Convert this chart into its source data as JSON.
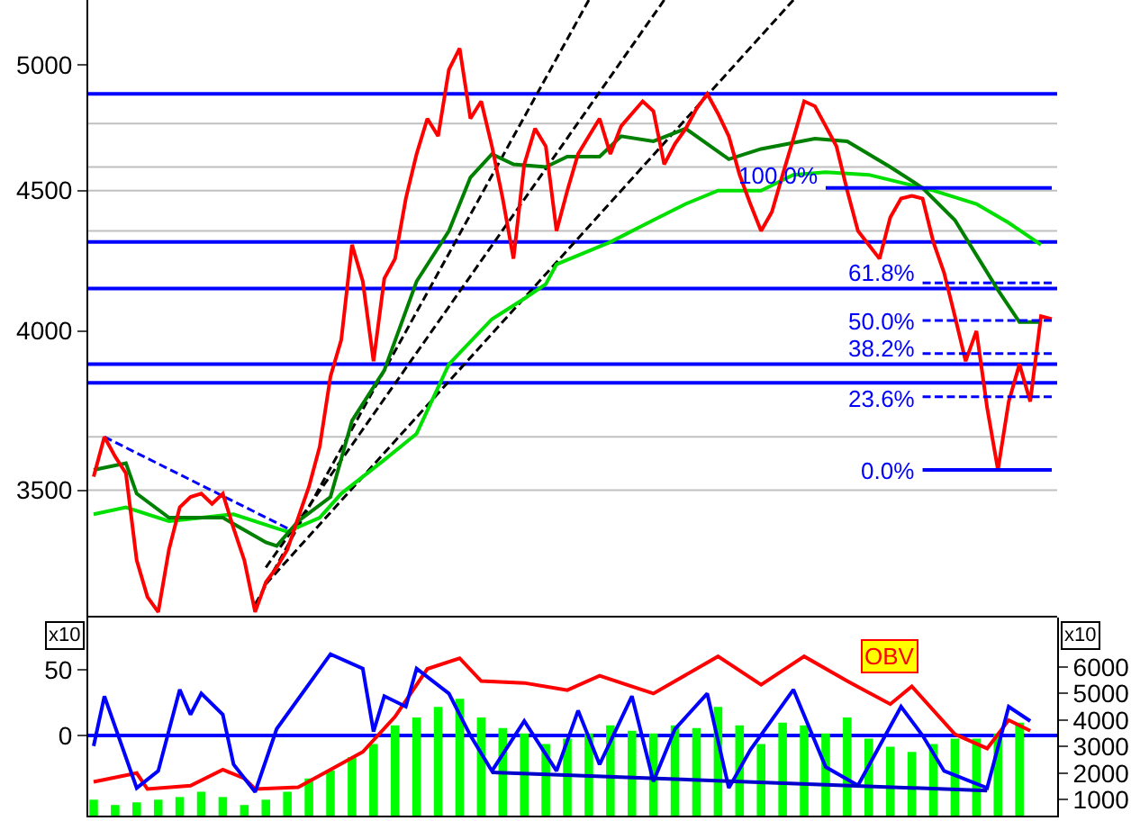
{
  "chart_data": [
    {
      "type": "line",
      "log": true,
      "categories": [
        null,
        null,
        null,
        null,
        null,
        null,
        null,
        null,
        null,
        null,
        null,
        null,
        null,
        null,
        null,
        null,
        null,
        null,
        null,
        null,
        null,
        null,
        null,
        null,
        null,
        null,
        null,
        null,
        null,
        null,
        null,
        null,
        null,
        null,
        null,
        null,
        null,
        null,
        null,
        null,
        null,
        null,
        null,
        null,
        null,
        null,
        null,
        null,
        null,
        null,
        null,
        null,
        null,
        null,
        null,
        null,
        null,
        null,
        null,
        null,
        null,
        null,
        null,
        null,
        null,
        null,
        null,
        null,
        null,
        null,
        null,
        null,
        null,
        null,
        null,
        null,
        null,
        null,
        null,
        null,
        null,
        null,
        null,
        null,
        null,
        null,
        null,
        null,
        null,
        null
      ],
      "ylim": [
        3150,
        5280
      ],
      "yticks": [
        3500,
        4000,
        4500,
        5000
      ],
      "ref_lines": [
        {
          "axis": "y",
          "value": 4760,
          "color": "#c0c0c0"
        },
        {
          "axis": "y",
          "value": 4590,
          "color": "#c0c0c0"
        },
        {
          "axis": "y",
          "value": 4500,
          "color": "#c0c0c0"
        },
        {
          "axis": "y",
          "value": 4350,
          "color": "#c0c0c0"
        },
        {
          "axis": "y",
          "value": 3660,
          "color": "#c0c0c0"
        },
        {
          "axis": "y",
          "value": 3500,
          "color": "#c0c0c0"
        },
        {
          "axis": "y",
          "value": 4880,
          "color": "#0000ff"
        },
        {
          "axis": "y",
          "value": 4310,
          "color": "#0000ff"
        },
        {
          "axis": "y",
          "value": 4145,
          "color": "#0000ff"
        },
        {
          "axis": "y",
          "value": 3890,
          "color": "#0000ff"
        },
        {
          "axis": "y",
          "value": 3830,
          "color": "#0000ff"
        }
      ],
      "series": [
        {
          "color": "#000000",
          "line_style": "dashed",
          "values": [
            null,
            null,
            null,
            null,
            null,
            null,
            null,
            null,
            null,
            null,
            null,
            null,
            null,
            null,
            null,
            3180,
            null,
            null,
            null,
            null,
            null,
            null,
            null,
            null,
            null,
            null,
            null,
            null,
            null,
            null,
            null,
            null,
            null,
            null,
            null,
            null,
            null,
            null,
            null,
            null,
            null,
            null,
            null,
            null,
            null,
            null,
            5280,
            null,
            null,
            null,
            null,
            null,
            null,
            null,
            null,
            null,
            null,
            null,
            null,
            null,
            null,
            null,
            null,
            null,
            null,
            null,
            null,
            null,
            null,
            null,
            null,
            null,
            null,
            null,
            null,
            null,
            null,
            null,
            null,
            null,
            null,
            null,
            null,
            null,
            null,
            null,
            null,
            null,
            null,
            null
          ]
        },
        {
          "color": "#000000",
          "line_style": "dashed",
          "values": [
            null,
            null,
            null,
            null,
            null,
            null,
            null,
            null,
            null,
            null,
            null,
            null,
            null,
            null,
            null,
            null,
            3280,
            null,
            null,
            null,
            null,
            null,
            null,
            null,
            null,
            null,
            null,
            null,
            null,
            null,
            null,
            null,
            null,
            null,
            null,
            null,
            null,
            null,
            null,
            null,
            null,
            null,
            null,
            null,
            null,
            null,
            null,
            null,
            null,
            null,
            null,
            null,
            null,
            5280,
            null,
            null,
            null,
            null,
            null,
            null,
            null,
            null,
            null,
            null,
            null,
            null,
            null,
            null,
            null,
            null,
            null,
            null,
            null,
            null,
            null,
            null,
            null,
            null,
            null,
            null,
            null,
            null,
            null,
            null,
            null,
            null,
            null,
            null,
            null,
            null
          ]
        },
        {
          "color": "#000000",
          "line_style": "dashed",
          "values": [
            null,
            null,
            null,
            null,
            null,
            null,
            null,
            null,
            null,
            null,
            null,
            null,
            null,
            null,
            null,
            null,
            3235,
            null,
            null,
            null,
            null,
            null,
            null,
            null,
            null,
            null,
            null,
            null,
            null,
            null,
            null,
            null,
            null,
            null,
            null,
            null,
            null,
            null,
            null,
            null,
            null,
            null,
            null,
            null,
            null,
            null,
            null,
            null,
            null,
            null,
            null,
            null,
            null,
            null,
            null,
            null,
            null,
            null,
            null,
            null,
            null,
            null,
            null,
            null,
            null,
            5280,
            null,
            null,
            null,
            null,
            null,
            null,
            null,
            null,
            null,
            null,
            null,
            null,
            null,
            null,
            null,
            null,
            null,
            null,
            null,
            null,
            null,
            null,
            null,
            null
          ]
        },
        {
          "color": "#0000ff",
          "line_style": "dashed",
          "values": [
            null,
            3660,
            null,
            null,
            null,
            null,
            null,
            null,
            null,
            null,
            null,
            null,
            null,
            null,
            null,
            null,
            null,
            null,
            3390,
            null,
            null,
            null,
            null,
            null,
            null,
            null,
            null,
            null,
            null,
            null,
            null,
            null,
            null,
            null,
            null,
            null,
            null,
            null,
            null,
            null,
            null,
            null,
            null,
            null,
            null,
            null,
            null,
            null,
            null,
            null,
            null,
            null,
            null,
            null,
            null,
            null,
            null,
            null,
            null,
            null,
            null,
            null,
            null,
            null,
            null,
            null,
            null,
            null,
            null,
            null,
            null,
            null,
            null,
            null,
            null,
            null,
            null,
            null,
            null,
            null,
            null,
            null,
            null,
            null,
            null,
            null,
            null,
            null,
            null,
            null
          ]
        },
        {
          "color": "#00e000",
          "values": [
            3430,
            null,
            null,
            3450,
            null,
            null,
            null,
            3410,
            null,
            null,
            null,
            null,
            null,
            3430,
            null,
            null,
            null,
            3390,
            3380,
            null,
            null,
            3420,
            null,
            3490,
            null,
            null,
            null,
            3590,
            null,
            null,
            3670,
            null,
            null,
            3890,
            null,
            null,
            null,
            4040,
            null,
            null,
            4110,
            null,
            4160,
            4230,
            null,
            null,
            null,
            null,
            4310,
            null,
            null,
            null,
            4390,
            null,
            null,
            4450,
            null,
            null,
            4500,
            null,
            null,
            null,
            4500,
            null,
            null,
            4560,
            null,
            null,
            4570,
            null,
            null,
            null,
            4560,
            null,
            null,
            4530,
            null,
            null,
            4500,
            null,
            null,
            null,
            4450,
            null,
            null,
            4380,
            null,
            null,
            4300,
            null
          ]
        },
        {
          "color": "#008000",
          "values": [
            3560,
            null,
            null,
            3580,
            3490,
            null,
            null,
            3420,
            null,
            null,
            null,
            null,
            3420,
            null,
            null,
            null,
            3350,
            3340,
            null,
            3410,
            null,
            null,
            3480,
            null,
            3710,
            null,
            null,
            3870,
            null,
            null,
            4170,
            null,
            null,
            4350,
            null,
            4550,
            null,
            4640,
            null,
            4600,
            null,
            null,
            4590,
            null,
            4630,
            null,
            null,
            4630,
            null,
            4710,
            null,
            null,
            4690,
            null,
            null,
            4740,
            null,
            null,
            null,
            4620,
            null,
            null,
            4660,
            null,
            null,
            null,
            null,
            4700,
            null,
            null,
            4690,
            null,
            null,
            null,
            4590,
            null,
            null,
            4510,
            null,
            null,
            4390,
            null,
            null,
            null,
            4140,
            null,
            4030,
            null,
            4030,
            null
          ]
        },
        {
          "color": "#ff0000",
          "values": [
            3540,
            3660,
            3600,
            3550,
            3300,
            3200,
            3160,
            3330,
            3450,
            3480,
            3490,
            3460,
            3490,
            3390,
            3300,
            3160,
            3240,
            3280,
            3330,
            3420,
            3510,
            3630,
            3850,
            3970,
            4300,
            4170,
            3900,
            4180,
            4250,
            4470,
            4640,
            4780,
            4710,
            4980,
            5070,
            4780,
            4850,
            4670,
            4470,
            4250,
            4600,
            4740,
            4670,
            4350,
            4500,
            4640,
            4710,
            4780,
            4640,
            4750,
            4800,
            4850,
            4810,
            4600,
            4680,
            4740,
            4820,
            4880,
            4800,
            4710,
            4560,
            4450,
            4350,
            4420,
            4560,
            4700,
            4850,
            4830,
            4750,
            4670,
            4500,
            4350,
            4300,
            4250,
            4400,
            4470,
            4480,
            4470,
            4310,
            4200,
            4050,
            3900,
            4000,
            3750,
            3560,
            3770,
            3890,
            3770,
            4050,
            4040
          ]
        },
        {
          "name": "100.0%",
          "color": "#0000ff",
          "values": [
            null,
            null,
            null,
            null,
            null,
            null,
            null,
            null,
            null,
            null,
            null,
            null,
            null,
            null,
            null,
            null,
            null,
            null,
            null,
            null,
            null,
            null,
            null,
            null,
            null,
            null,
            null,
            null,
            null,
            null,
            null,
            null,
            null,
            null,
            null,
            null,
            null,
            null,
            null,
            null,
            null,
            null,
            null,
            null,
            null,
            null,
            null,
            null,
            null,
            null,
            null,
            null,
            null,
            null,
            null,
            null,
            null,
            null,
            null,
            null,
            null,
            null,
            null,
            null,
            null,
            null,
            null,
            null,
            4510,
            null,
            null,
            null,
            null,
            null,
            null,
            null,
            null,
            null,
            null,
            null,
            null,
            null,
            null,
            null,
            null,
            null,
            null,
            null,
            null,
            4510
          ]
        },
        {
          "name": "61.8%",
          "color": "#0000ff",
          "line_style": "dashed",
          "values": [
            null,
            null,
            null,
            null,
            null,
            null,
            null,
            null,
            null,
            null,
            null,
            null,
            null,
            null,
            null,
            null,
            null,
            null,
            null,
            null,
            null,
            null,
            null,
            null,
            null,
            null,
            null,
            null,
            null,
            null,
            null,
            null,
            null,
            null,
            null,
            null,
            null,
            null,
            null,
            null,
            null,
            null,
            null,
            null,
            null,
            null,
            null,
            null,
            null,
            null,
            null,
            null,
            null,
            null,
            null,
            null,
            null,
            null,
            null,
            null,
            null,
            null,
            null,
            null,
            null,
            null,
            null,
            null,
            null,
            null,
            null,
            null,
            null,
            null,
            null,
            null,
            null,
            4165,
            null,
            null,
            null,
            null,
            null,
            null,
            null,
            null,
            null,
            null,
            null,
            4165
          ]
        },
        {
          "name": "50.0%",
          "color": "#0000ff",
          "line_style": "dashed",
          "values": [
            null,
            null,
            null,
            null,
            null,
            null,
            null,
            null,
            null,
            null,
            null,
            null,
            null,
            null,
            null,
            null,
            null,
            null,
            null,
            null,
            null,
            null,
            null,
            null,
            null,
            null,
            null,
            null,
            null,
            null,
            null,
            null,
            null,
            null,
            null,
            null,
            null,
            null,
            null,
            null,
            null,
            null,
            null,
            null,
            null,
            null,
            null,
            null,
            null,
            null,
            null,
            null,
            null,
            null,
            null,
            null,
            null,
            null,
            null,
            null,
            null,
            null,
            null,
            null,
            null,
            null,
            null,
            null,
            null,
            null,
            null,
            null,
            null,
            null,
            null,
            null,
            null,
            4035,
            null,
            null,
            null,
            null,
            null,
            null,
            null,
            null,
            null,
            null,
            null,
            4035
          ]
        },
        {
          "name": "38.2%",
          "color": "#0000ff",
          "line_style": "dashed",
          "values": [
            null,
            null,
            null,
            null,
            null,
            null,
            null,
            null,
            null,
            null,
            null,
            null,
            null,
            null,
            null,
            null,
            null,
            null,
            null,
            null,
            null,
            null,
            null,
            null,
            null,
            null,
            null,
            null,
            null,
            null,
            null,
            null,
            null,
            null,
            null,
            null,
            null,
            null,
            null,
            null,
            null,
            null,
            null,
            null,
            null,
            null,
            null,
            null,
            null,
            null,
            null,
            null,
            null,
            null,
            null,
            null,
            null,
            null,
            null,
            null,
            null,
            null,
            null,
            null,
            null,
            null,
            null,
            null,
            null,
            null,
            null,
            null,
            null,
            null,
            null,
            null,
            null,
            3925,
            null,
            null,
            null,
            null,
            null,
            null,
            null,
            null,
            null,
            null,
            null,
            3925
          ]
        },
        {
          "name": "23.6%",
          "color": "#0000ff",
          "line_style": "dashed",
          "values": [
            null,
            null,
            null,
            null,
            null,
            null,
            null,
            null,
            null,
            null,
            null,
            null,
            null,
            null,
            null,
            null,
            null,
            null,
            null,
            null,
            null,
            null,
            null,
            null,
            null,
            null,
            null,
            null,
            null,
            null,
            null,
            null,
            null,
            null,
            null,
            null,
            null,
            null,
            null,
            null,
            null,
            null,
            null,
            null,
            null,
            null,
            null,
            null,
            null,
            null,
            null,
            null,
            null,
            null,
            null,
            null,
            null,
            null,
            null,
            null,
            null,
            null,
            null,
            null,
            null,
            null,
            null,
            null,
            null,
            null,
            null,
            null,
            null,
            null,
            null,
            null,
            null,
            3785,
            null,
            null,
            null,
            null,
            null,
            null,
            null,
            null,
            null,
            null,
            null,
            3785
          ]
        },
        {
          "name": "0.0%",
          "color": "#0000ff",
          "values": [
            null,
            null,
            null,
            null,
            null,
            null,
            null,
            null,
            null,
            null,
            null,
            null,
            null,
            null,
            null,
            null,
            null,
            null,
            null,
            null,
            null,
            null,
            null,
            null,
            null,
            null,
            null,
            null,
            null,
            null,
            null,
            null,
            null,
            null,
            null,
            null,
            null,
            null,
            null,
            null,
            null,
            null,
            null,
            null,
            null,
            null,
            null,
            null,
            null,
            null,
            null,
            null,
            null,
            null,
            null,
            null,
            null,
            null,
            null,
            null,
            null,
            null,
            null,
            null,
            null,
            null,
            null,
            null,
            null,
            null,
            null,
            null,
            null,
            null,
            null,
            null,
            null,
            3560,
            null,
            null,
            null,
            null,
            null,
            null,
            null,
            null,
            null,
            null,
            null,
            3560
          ]
        }
      ]
    },
    {
      "type": "line",
      "categories": [
        null,
        null,
        null,
        null,
        null,
        null,
        null,
        null,
        null,
        null,
        null,
        null,
        null,
        null,
        null,
        null,
        null,
        null,
        null,
        null,
        null,
        null,
        null,
        null,
        null,
        null,
        null,
        null,
        null,
        null,
        null,
        null,
        null,
        null,
        null,
        null,
        null,
        null,
        null,
        null,
        null,
        null,
        null,
        null,
        null,
        null,
        null,
        null,
        null,
        null,
        null,
        null,
        null,
        null,
        null,
        null,
        null,
        null,
        null,
        null,
        null,
        null,
        null,
        null,
        null,
        null,
        null,
        null,
        null,
        null,
        null,
        null,
        null,
        null,
        null,
        null,
        null,
        null,
        null,
        null,
        null,
        null,
        null,
        null,
        null,
        null,
        null,
        null,
        null,
        null
      ],
      "ylim": [
        -61,
        90
      ],
      "yticks": [
        0,
        50
      ],
      "y2lim": [
        400,
        7870
      ],
      "y2ticks": [
        1000,
        2000,
        3000,
        4000,
        5000,
        6000
      ],
      "annotations": [
        "x10",
        "x10"
      ],
      "ref_lines": [
        {
          "axis": "y",
          "value": 0,
          "color": "#0000ff"
        }
      ],
      "series": [
        {
          "type": "bar",
          "axis": "y2",
          "color": "#00ff00",
          "values": [
            1000,
            null,
            800,
            null,
            900,
            null,
            1000,
            null,
            1100,
            null,
            1300,
            null,
            1100,
            null,
            800,
            null,
            1000,
            null,
            1300,
            null,
            1800,
            null,
            2100,
            null,
            2600,
            null,
            3100,
            null,
            3800,
            null,
            4100,
            null,
            4500,
            null,
            4800,
            null,
            4100,
            null,
            3700,
            null,
            3500,
            null,
            3100,
            null,
            3300,
            null,
            3500,
            null,
            3800,
            null,
            3600,
            null,
            3500,
            null,
            3800,
            null,
            3700,
            null,
            4500,
            null,
            3800,
            null,
            3100,
            null,
            3900,
            null,
            3800,
            null,
            3500,
            null,
            4100,
            null,
            3300,
            null,
            3000,
            null,
            2800,
            null,
            3100,
            null,
            3300,
            null,
            3300,
            null,
            3500,
            null,
            3900,
            null,
            null,
            null
          ]
        },
        {
          "color": "#0000ff",
          "values": [
            -8,
            30,
            null,
            null,
            -40,
            null,
            -27,
            null,
            35,
            16,
            32,
            null,
            16,
            -22,
            null,
            -43,
            null,
            5,
            null,
            null,
            null,
            null,
            62,
            null,
            null,
            51,
            3,
            30,
            null,
            22,
            51,
            null,
            null,
            32,
            null,
            0,
            null,
            -27,
            null,
            null,
            11,
            null,
            null,
            -27,
            null,
            19,
            null,
            -22,
            null,
            null,
            30,
            null,
            -35,
            null,
            5,
            null,
            null,
            32,
            null,
            -40,
            null,
            -11,
            null,
            null,
            null,
            35,
            null,
            null,
            -24,
            null,
            null,
            -38,
            null,
            null,
            null,
            22,
            null,
            0,
            null,
            -27,
            null,
            null,
            null,
            -40,
            null,
            22,
            null,
            11,
            null,
            null
          ]
        },
        {
          "color": "#0000cc",
          "values": [
            null,
            null,
            null,
            null,
            null,
            null,
            null,
            null,
            null,
            null,
            null,
            null,
            null,
            null,
            null,
            null,
            null,
            null,
            null,
            null,
            null,
            null,
            null,
            null,
            null,
            null,
            null,
            null,
            null,
            null,
            null,
            null,
            null,
            null,
            null,
            null,
            null,
            -28,
            null,
            null,
            null,
            null,
            null,
            null,
            null,
            null,
            null,
            null,
            null,
            null,
            null,
            null,
            null,
            null,
            null,
            null,
            null,
            null,
            null,
            null,
            null,
            null,
            null,
            null,
            null,
            null,
            null,
            null,
            null,
            null,
            null,
            null,
            null,
            null,
            null,
            null,
            null,
            null,
            null,
            null,
            null,
            null,
            null,
            -42,
            null,
            null,
            null,
            null,
            null,
            null
          ]
        },
        {
          "name": "OBV",
          "axis": "y2",
          "color": "#ff0000",
          "values": [
            1670,
            null,
            null,
            null,
            2000,
            1400,
            null,
            null,
            null,
            1530,
            null,
            null,
            2130,
            null,
            1800,
            1400,
            null,
            null,
            null,
            1470,
            null,
            null,
            2130,
            null,
            null,
            2800,
            null,
            null,
            4130,
            null,
            null,
            5930,
            null,
            null,
            6330,
            null,
            5470,
            null,
            null,
            null,
            5400,
            null,
            null,
            null,
            5130,
            null,
            null,
            5670,
            null,
            null,
            null,
            null,
            5000,
            null,
            null,
            null,
            null,
            null,
            6400,
            null,
            null,
            null,
            5330,
            null,
            null,
            null,
            6400,
            null,
            null,
            null,
            5470,
            null,
            null,
            null,
            4600,
            null,
            5270,
            null,
            null,
            null,
            3470,
            null,
            null,
            2930,
            null,
            4000,
            null,
            3600,
            null,
            null
          ]
        }
      ]
    }
  ]
}
